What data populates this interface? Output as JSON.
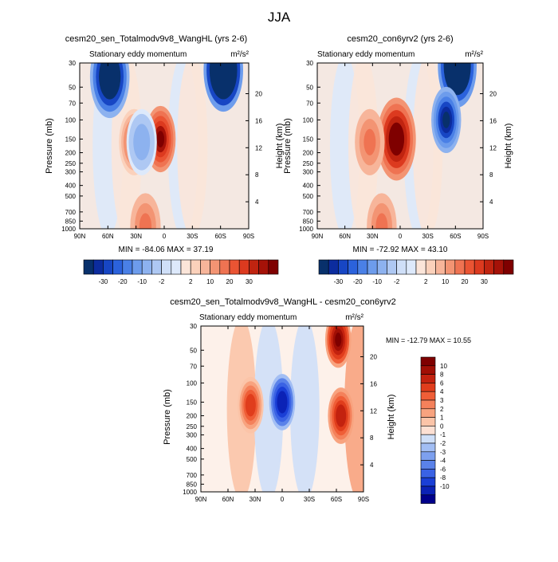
{
  "figure": {
    "title": "JJA"
  },
  "colors": {
    "neg": [
      "#08306b",
      "#0c2c9e",
      "#1746c4",
      "#2b62dc",
      "#4a80e6",
      "#6d9cec",
      "#8db2ef",
      "#aec8f3",
      "#cfdff8"
    ],
    "light": [
      "#dde9fb",
      "#fbe5d9"
    ],
    "pos": [
      "#fbd1bb",
      "#f7b59a",
      "#f39473",
      "#ef7352",
      "#ea5433",
      "#dc3a1f",
      "#c02410",
      "#a51208",
      "#7f0000"
    ],
    "diff_neg": [
      "#00008b",
      "#0b22b6",
      "#1a3fd6",
      "#3a62e4",
      "#5a82e9",
      "#7da0ef",
      "#a2bef4",
      "#cfdff8"
    ],
    "diff_pos": [
      "#fde0d3",
      "#fbc4a8",
      "#f8a37f",
      "#f4815b",
      "#ef5e37",
      "#e03d1c",
      "#c3220f",
      "#a10f05",
      "#7f0000"
    ]
  },
  "chart_data": [
    {
      "type": "heatmap",
      "title": "cesm20_sen_Totalmodv9v8_WangHL (yrs 2-6)",
      "subtitle": "Stationary eddy momentum",
      "units": "m²/s²",
      "ylabel": "Pressure (mb)",
      "ylabel_right": "Height (km)",
      "x_ticks": [
        "90N",
        "60N",
        "30N",
        "0",
        "30S",
        "60S",
        "90S"
      ],
      "y_ticks": [
        30,
        50,
        70,
        100,
        150,
        200,
        250,
        300,
        400,
        500,
        700,
        850,
        1000
      ],
      "height_ticks": [
        4,
        8,
        12,
        16,
        20
      ],
      "xlim": [
        90,
        -90
      ],
      "ylim": [
        1000,
        30
      ],
      "stats": "MIN = -84.06  MAX =  37.19",
      "colorbar_labels": [
        "-30",
        "-20",
        "-10",
        "-2",
        "2",
        "10",
        "20",
        "30"
      ],
      "features": [
        {
          "lat": 4,
          "p": 150,
          "value": 37
        },
        {
          "lat": 32,
          "p": 160,
          "value": 12
        },
        {
          "lat": 58,
          "p": 40,
          "value": -60
        },
        {
          "lat": -63,
          "p": 35,
          "value": -84
        },
        {
          "lat": 24,
          "p": 160,
          "value": -8
        },
        {
          "lat": 20,
          "p": 950,
          "value": 14
        }
      ]
    },
    {
      "type": "heatmap",
      "title": "cesm20_con6yrv2 (yrs 2-6)",
      "subtitle": "Stationary eddy momentum",
      "units": "m²/s²",
      "ylabel": "Pressure (mb)",
      "ylabel_right": "Height (km)",
      "x_ticks": [
        "90N",
        "60N",
        "30N",
        "0",
        "30S",
        "60S",
        "90S"
      ],
      "y_ticks": [
        30,
        50,
        70,
        100,
        150,
        200,
        250,
        300,
        400,
        500,
        700,
        850,
        1000
      ],
      "height_ticks": [
        4,
        8,
        12,
        16,
        20
      ],
      "xlim": [
        90,
        -90
      ],
      "ylim": [
        1000,
        30
      ],
      "stats": "MIN = -72.92  MAX =  43.10",
      "colorbar_labels": [
        "-30",
        "-20",
        "-10",
        "-2",
        "2",
        "10",
        "20",
        "30"
      ],
      "features": [
        {
          "lat": 4,
          "p": 150,
          "value": 43
        },
        {
          "lat": 33,
          "p": 160,
          "value": 14
        },
        {
          "lat": -62,
          "p": 32,
          "value": -73
        },
        {
          "lat": -50,
          "p": 100,
          "value": -40
        },
        {
          "lat": 20,
          "p": 950,
          "value": 15
        }
      ]
    },
    {
      "type": "heatmap",
      "title": "cesm20_sen_Totalmodv9v8_WangHL - cesm20_con6yrv2",
      "subtitle": "Stationary eddy momentum",
      "units": "m²/s²",
      "ylabel": "Pressure (mb)",
      "ylabel_right": "Height (km)",
      "x_ticks": [
        "90N",
        "60N",
        "30N",
        "0",
        "30S",
        "60S",
        "90S"
      ],
      "y_ticks": [
        30,
        50,
        70,
        100,
        150,
        200,
        250,
        300,
        400,
        500,
        700,
        850,
        1000
      ],
      "height_ticks": [
        4,
        8,
        12,
        16,
        20
      ],
      "xlim": [
        90,
        -90
      ],
      "ylim": [
        1000,
        30
      ],
      "stats": "MIN = -12.79  MAX =  10.55",
      "colorbar_labels": [
        "10",
        "8",
        "6",
        "4",
        "3",
        "2",
        "1",
        "0",
        "-1",
        "-2",
        "-3",
        "-4",
        "-6",
        "-8",
        "-10"
      ],
      "features": [
        {
          "lat": 35,
          "p": 160,
          "value": 5
        },
        {
          "lat": 0,
          "p": 150,
          "value": -10
        },
        {
          "lat": -62,
          "p": 40,
          "value": 10.5
        },
        {
          "lat": -65,
          "p": 200,
          "value": 8
        }
      ]
    }
  ]
}
